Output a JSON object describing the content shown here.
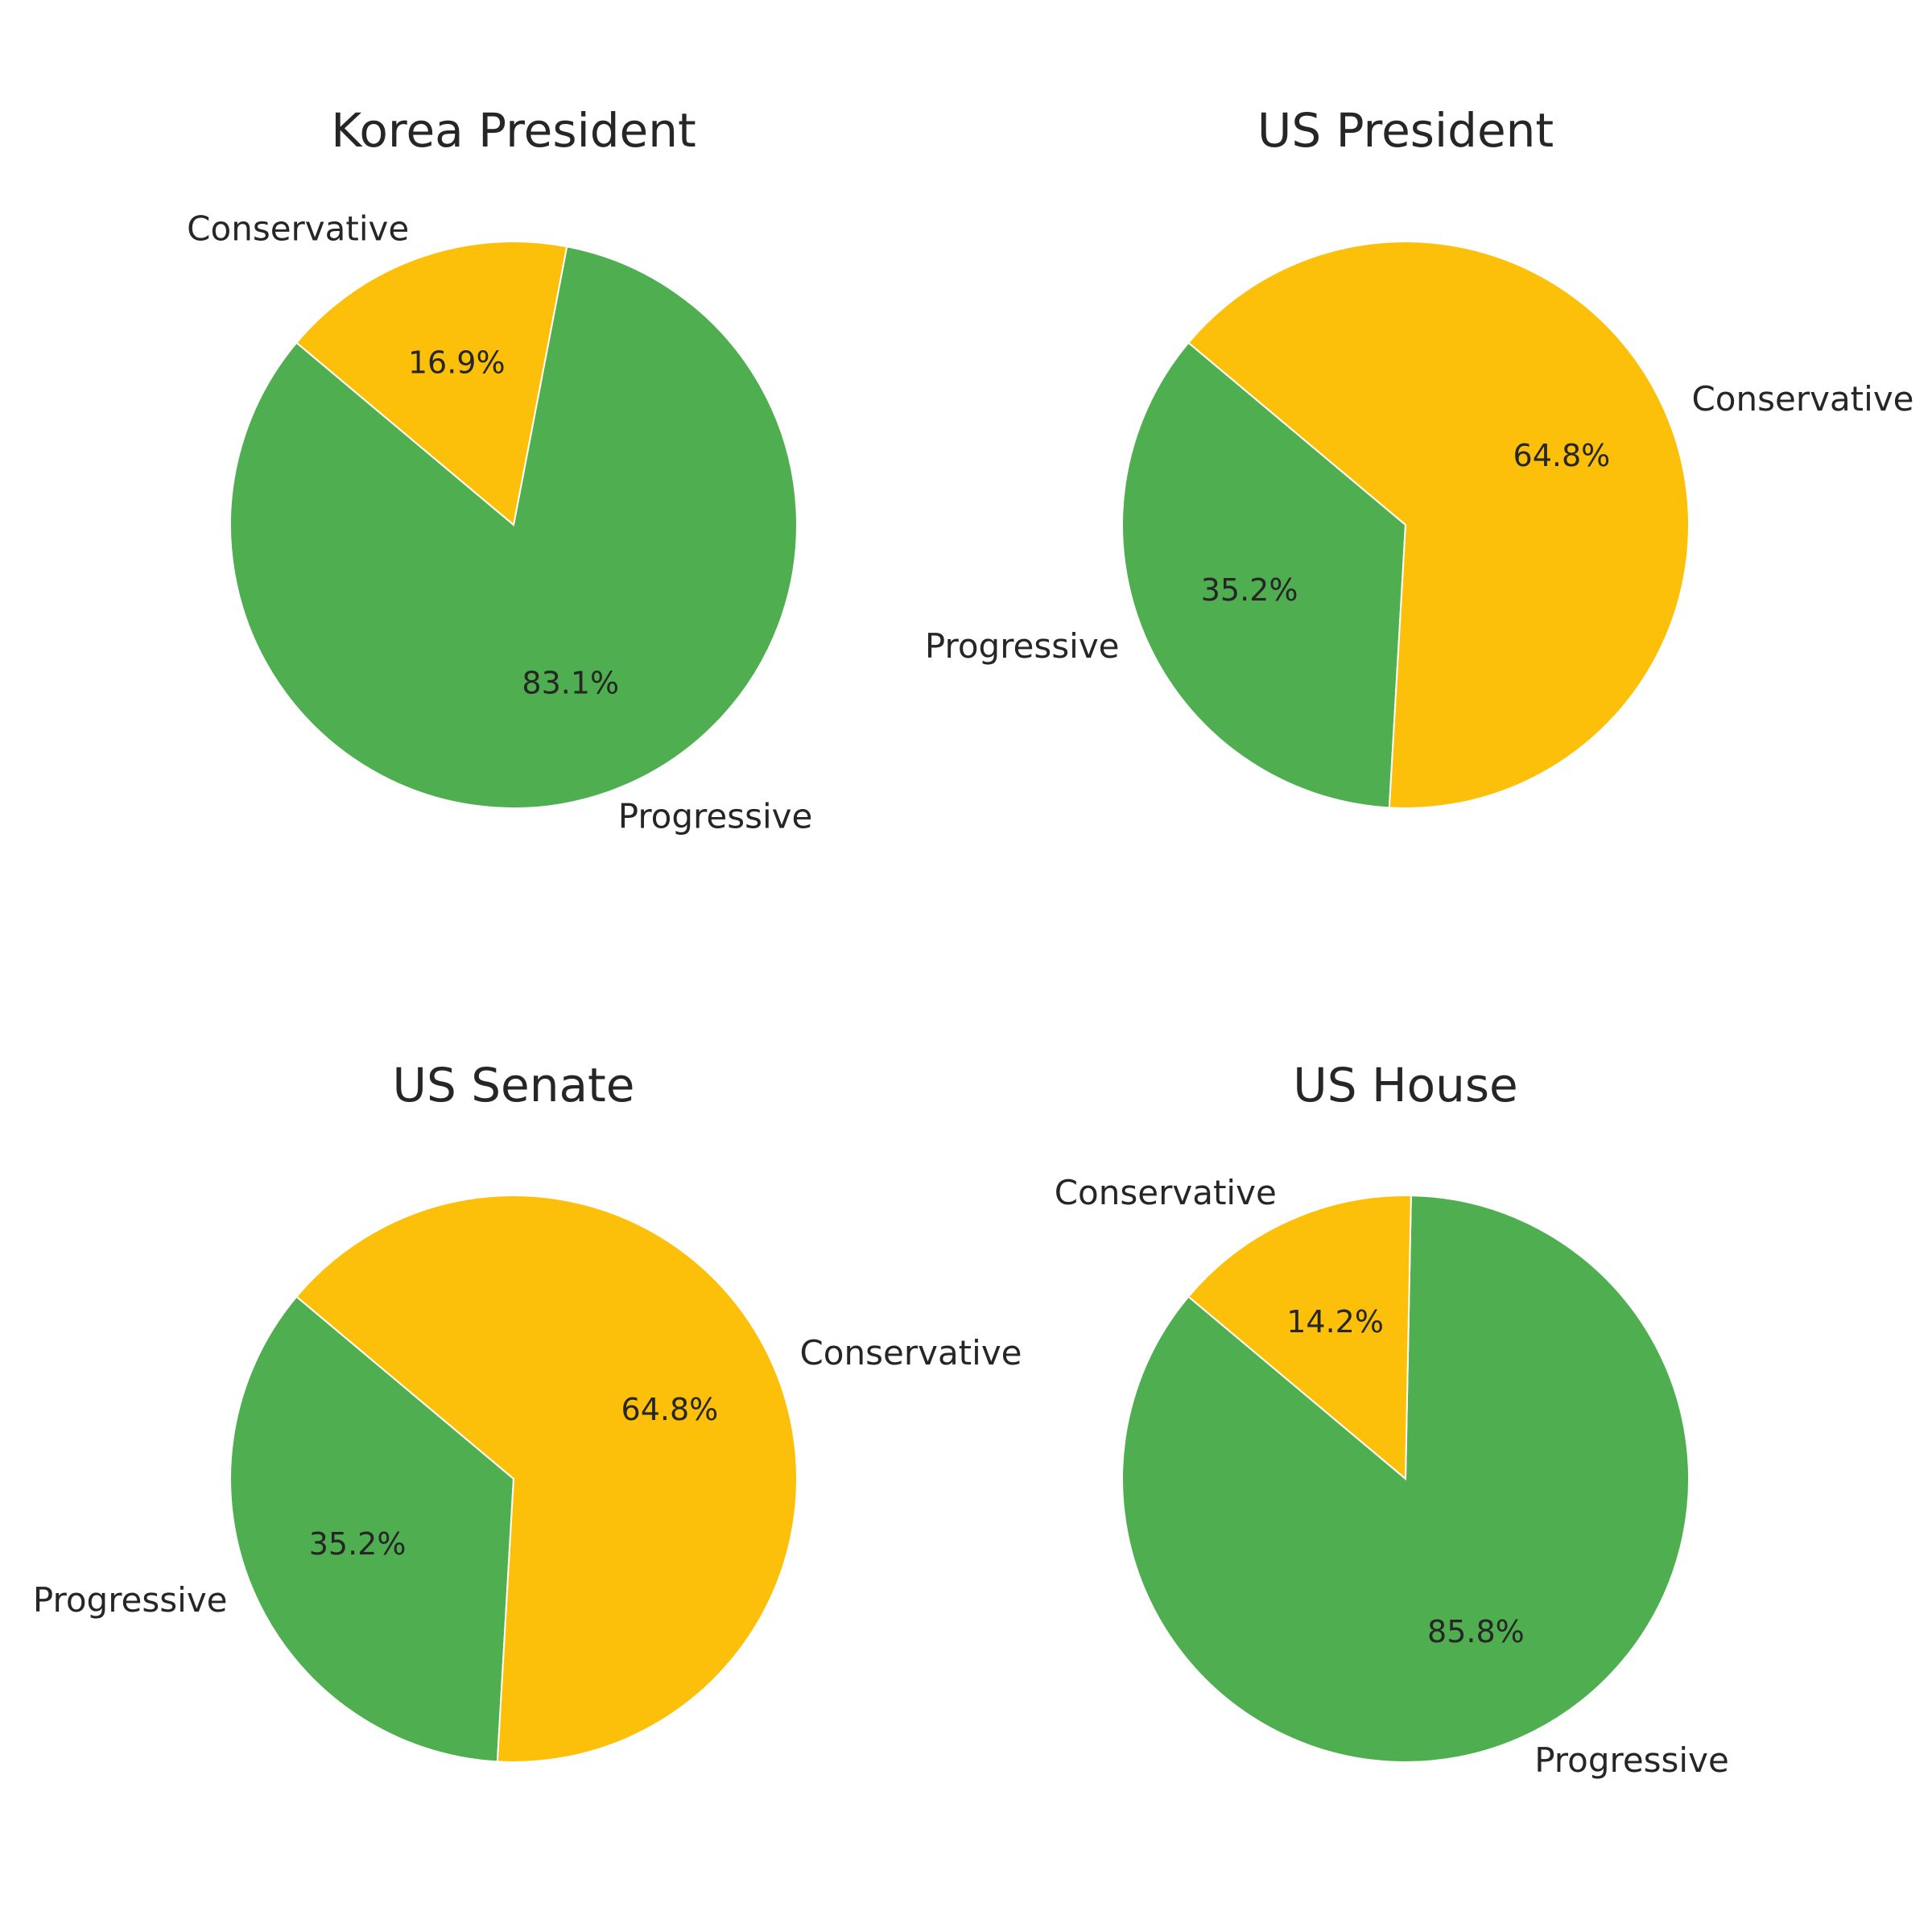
{
  "colors": {
    "Progressive": "#4FAF50",
    "Conservative": "#FDC00A",
    "slice_edge": "#ffffff",
    "background": "#ffffff"
  },
  "chart_data": [
    {
      "type": "pie",
      "title": "Korea President",
      "labels": [
        "Progressive",
        "Conservative"
      ],
      "values": [
        83.1,
        16.9
      ],
      "value_labels": [
        "83.1%",
        "16.9%"
      ],
      "start_angle_deg": 140,
      "direction": "counterclockwise"
    },
    {
      "type": "pie",
      "title": "US President",
      "labels": [
        "Progressive",
        "Conservative"
      ],
      "values": [
        35.2,
        64.8
      ],
      "value_labels": [
        "35.2%",
        "64.8%"
      ],
      "start_angle_deg": 140,
      "direction": "counterclockwise"
    },
    {
      "type": "pie",
      "title": "US Senate",
      "labels": [
        "Progressive",
        "Conservative"
      ],
      "values": [
        35.2,
        64.8
      ],
      "value_labels": [
        "35.2%",
        "64.8%"
      ],
      "start_angle_deg": 140,
      "direction": "counterclockwise"
    },
    {
      "type": "pie",
      "title": "US House",
      "labels": [
        "Progressive",
        "Conservative"
      ],
      "values": [
        85.8,
        14.2
      ],
      "value_labels": [
        "85.8%",
        "14.2%"
      ],
      "start_angle_deg": 140,
      "direction": "counterclockwise"
    }
  ]
}
